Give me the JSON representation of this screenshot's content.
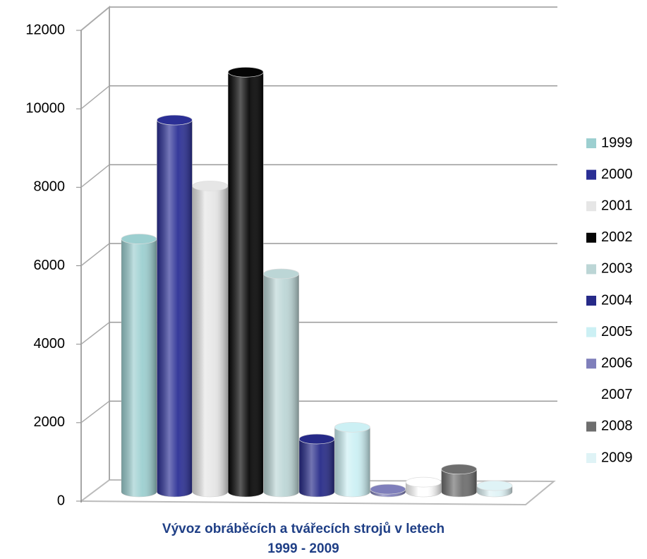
{
  "chart_data": {
    "type": "bar3d",
    "xlabel": [
      "Vývoz obráběcích a tvářecích strojů v letech",
      "1999 - 2009"
    ],
    "ylim": [
      0,
      12000
    ],
    "yticks": [
      0,
      2000,
      4000,
      6000,
      8000,
      10000,
      12000
    ],
    "grid": true,
    "legend": "right",
    "series": [
      {
        "name": "1999",
        "color": "#9ccfd0",
        "values": [
          6450
        ]
      },
      {
        "name": "2000",
        "color": "#2b2f95",
        "values": [
          9480
        ]
      },
      {
        "name": "2001",
        "color": "#e6e6e6",
        "values": [
          7800
        ]
      },
      {
        "name": "2002",
        "color": "#050505",
        "values": [
          10700
        ]
      },
      {
        "name": "2003",
        "color": "#bcd6d6",
        "values": [
          5560
        ]
      },
      {
        "name": "2004",
        "color": "#262a88",
        "values": [
          1350
        ]
      },
      {
        "name": "2005",
        "color": "#ccf0f4",
        "values": [
          1650
        ]
      },
      {
        "name": "2006",
        "color": "#7f7fbb",
        "values": [
          70
        ]
      },
      {
        "name": "2007",
        "color": "#ffffff",
        "values": [
          250
        ]
      },
      {
        "name": "2008",
        "color": "#6e6e6e",
        "values": [
          580
        ]
      },
      {
        "name": "2009",
        "color": "#dff3f6",
        "values": [
          160
        ]
      }
    ]
  }
}
